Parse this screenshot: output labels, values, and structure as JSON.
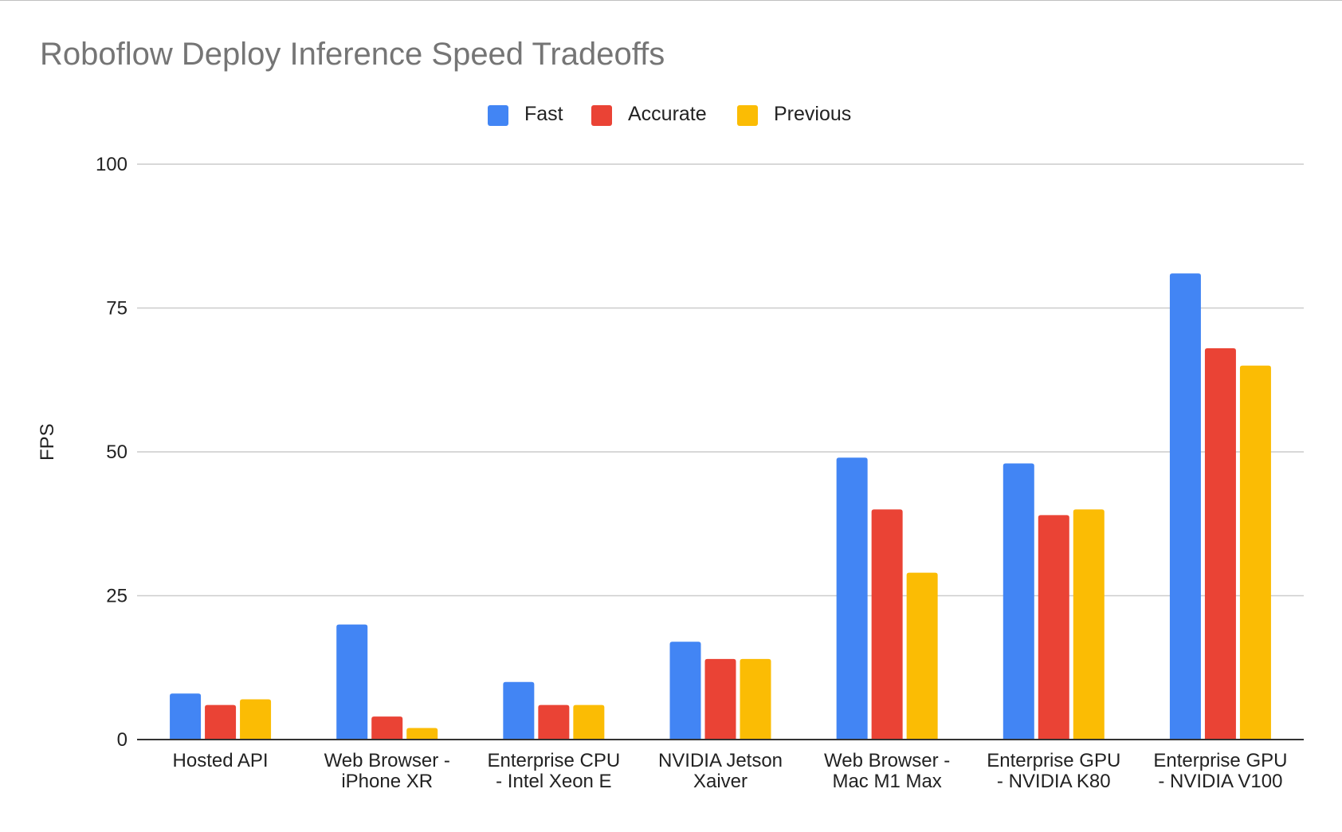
{
  "chart_data": {
    "type": "bar",
    "title": "Roboflow Deploy Inference Speed Tradeoffs",
    "xlabel": "",
    "ylabel": "FPS",
    "ylim": [
      0,
      100
    ],
    "yticks": [
      "0",
      "25",
      "50",
      "75",
      "100"
    ],
    "grid": true,
    "legend_position": "top",
    "categories": [
      [
        "Hosted API"
      ],
      [
        "Web Browser -",
        "iPhone XR"
      ],
      [
        "Enterprise CPU",
        "- Intel Xeon E"
      ],
      [
        "NVIDIA Jetson",
        "Xaiver"
      ],
      [
        "Web Browser -",
        "Mac M1 Max"
      ],
      [
        "Enterprise GPU",
        "- NVIDIA K80"
      ],
      [
        "Enterprise GPU",
        "- NVIDIA V100"
      ]
    ],
    "series": [
      {
        "name": "Fast",
        "color": "#4285f4",
        "values": [
          8,
          20,
          10,
          17,
          49,
          48,
          81
        ]
      },
      {
        "name": "Accurate",
        "color": "#ea4335",
        "values": [
          6,
          4,
          6,
          14,
          40,
          39,
          68
        ]
      },
      {
        "name": "Previous",
        "color": "#fbbc04",
        "values": [
          7,
          2,
          6,
          14,
          29,
          40,
          65
        ]
      }
    ]
  }
}
